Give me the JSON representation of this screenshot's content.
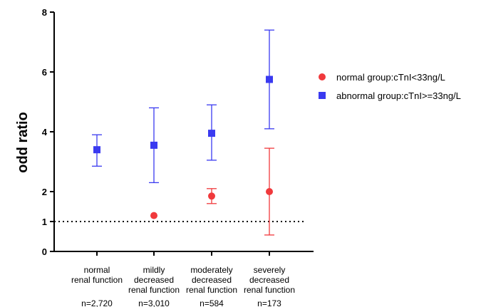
{
  "chart_data": {
    "type": "scatter",
    "ylabel": "odd ratio",
    "xlabel": "",
    "title": "",
    "ylim": [
      0,
      8
    ],
    "yticks": [
      0,
      1,
      2,
      4,
      6,
      8
    ],
    "reference_line": {
      "y": 1,
      "style": "dotted"
    },
    "categories": [
      {
        "lines": [
          "normal",
          "renal function"
        ],
        "n": "n=2,720"
      },
      {
        "lines": [
          "mildly",
          "decreased",
          "renal function"
        ],
        "n": "n=3,010"
      },
      {
        "lines": [
          "moderately",
          "decreased",
          "renal function"
        ],
        "n": "n=584"
      },
      {
        "lines": [
          "severely",
          "decreased",
          "renal function"
        ],
        "n": "n=173"
      }
    ],
    "legend_position": "right",
    "series": [
      {
        "name": "normal group:cTnI<33ng/L",
        "color": "#f0393c",
        "marker": "circle",
        "points": [
          {
            "cat": 1,
            "value": 1.2,
            "low": null,
            "high": null
          },
          {
            "cat": 2,
            "value": 1.85,
            "low": 1.6,
            "high": 2.1
          },
          {
            "cat": 3,
            "value": 2.0,
            "low": 0.55,
            "high": 3.45
          }
        ]
      },
      {
        "name": "abnormal group:cTnI>=33ng/L",
        "color": "#3a3af0",
        "marker": "square",
        "points": [
          {
            "cat": 0,
            "value": 3.4,
            "low": 2.85,
            "high": 3.9
          },
          {
            "cat": 1,
            "value": 3.55,
            "low": 2.3,
            "high": 4.8
          },
          {
            "cat": 2,
            "value": 3.95,
            "low": 3.05,
            "high": 4.9
          },
          {
            "cat": 3,
            "value": 5.75,
            "low": 4.1,
            "high": 7.4
          }
        ]
      }
    ]
  }
}
